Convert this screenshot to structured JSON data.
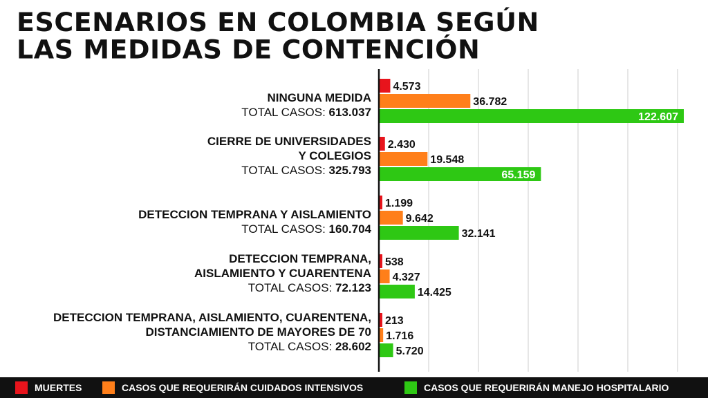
{
  "title_lines": [
    "ESCENARIOS EN COLOMBIA SEGÚN",
    "LAS MEDIDAS DE CONTENCIÓN"
  ],
  "colors": {
    "muertes": "#e8141c",
    "cuidados_intensivos": "#ff7f1a",
    "manejo_hospitalario": "#2ec814",
    "axis": "#111111",
    "grid": "#cccccc",
    "legend_bg": "#111111"
  },
  "legend": [
    {
      "key": "muertes",
      "label": "MUERTES"
    },
    {
      "key": "cuidados_intensivos",
      "label": "CASOS QUE REQUERIRÁN CUIDADOS INTENSIVOS"
    },
    {
      "key": "manejo_hospitalario",
      "label": "CASOS QUE REQUERIRÁN MANEJO HOSPITALARIO"
    }
  ],
  "chart_data": {
    "type": "bar",
    "orientation": "horizontal",
    "grid": true,
    "legend_position": "bottom",
    "total_prefix": "TOTAL CASOS: ",
    "categories": [
      {
        "label_lines": [
          "NINGUNA MEDIDA"
        ],
        "total": "613.037",
        "values": {
          "muertes": 4573,
          "cuidados_intensivos": 36782,
          "manejo_hospitalario": 122607
        },
        "labels": {
          "muertes": "4.573",
          "cuidados_intensivos": "36.782",
          "manejo_hospitalario": "122.607"
        }
      },
      {
        "label_lines": [
          "CIERRE DE UNIVERSIDADES",
          "Y COLEGIOS"
        ],
        "total": "325.793",
        "values": {
          "muertes": 2430,
          "cuidados_intensivos": 19548,
          "manejo_hospitalario": 65159
        },
        "labels": {
          "muertes": "2.430",
          "cuidados_intensivos": "19.548",
          "manejo_hospitalario": "65.159"
        }
      },
      {
        "label_lines": [
          "DETECCION TEMPRANA Y AISLAMIENTO"
        ],
        "total": "160.704",
        "values": {
          "muertes": 1199,
          "cuidados_intensivos": 9642,
          "manejo_hospitalario": 32141
        },
        "labels": {
          "muertes": "1.199",
          "cuidados_intensivos": "9.642",
          "manejo_hospitalario": "32.141"
        }
      },
      {
        "label_lines": [
          "DETECCION TEMPRANA,",
          "AISLAMIENTO Y CUARENTENA"
        ],
        "total": "72.123",
        "values": {
          "muertes": 538,
          "cuidados_intensivos": 4327,
          "manejo_hospitalario": 14425
        },
        "labels": {
          "muertes": "538",
          "cuidados_intensivos": "4.327",
          "manejo_hospitalario": "14.425"
        }
      },
      {
        "label_lines": [
          "DETECCION TEMPRANA, AISLAMIENTO, CUARENTENA,",
          "DISTANCIAMIENTO DE MAYORES DE 70"
        ],
        "total": "28.602",
        "values": {
          "muertes": 213,
          "cuidados_intensivos": 1716,
          "manejo_hospitalario": 5720
        },
        "labels": {
          "muertes": "213",
          "cuidados_intensivos": "1.716",
          "manejo_hospitalario": "5.720"
        }
      }
    ],
    "xlim": [
      0,
      122607
    ]
  }
}
